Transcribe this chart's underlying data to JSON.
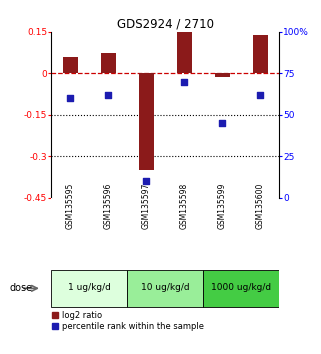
{
  "title": "GDS2924 / 2710",
  "samples": [
    "GSM135595",
    "GSM135596",
    "GSM135597",
    "GSM135598",
    "GSM135599",
    "GSM135600"
  ],
  "log2_ratio": [
    0.06,
    0.075,
    -0.35,
    0.15,
    -0.015,
    0.14
  ],
  "percentile": [
    60,
    62,
    10,
    70,
    45,
    62
  ],
  "ylim_left": [
    -0.45,
    0.15
  ],
  "ylim_right": [
    0,
    100
  ],
  "yticks_left": [
    0.15,
    0,
    -0.15,
    -0.3,
    -0.45
  ],
  "yticks_left_labels": [
    "0.15",
    "0",
    "-0.15",
    "-0.3",
    "-0.45"
  ],
  "yticks_right": [
    100,
    75,
    50,
    25,
    0
  ],
  "yticks_right_labels": [
    "100%",
    "75",
    "50",
    "25",
    "0"
  ],
  "bar_color": "#8B1A1A",
  "dot_color": "#1C1CB0",
  "ref_line_color": "#CC0000",
  "grid_color": "#000000",
  "sample_bg_color": "#cccccc",
  "dose_colors": [
    "#ddffdd",
    "#99ee99",
    "#44cc44"
  ],
  "dose_labels": [
    "1 ug/kg/d",
    "10 ug/kg/d",
    "1000 ug/kg/d"
  ],
  "dose_label": "dose",
  "legend_log2": "log2 ratio",
  "legend_pct": "percentile rank within the sample",
  "background_color": "#ffffff"
}
